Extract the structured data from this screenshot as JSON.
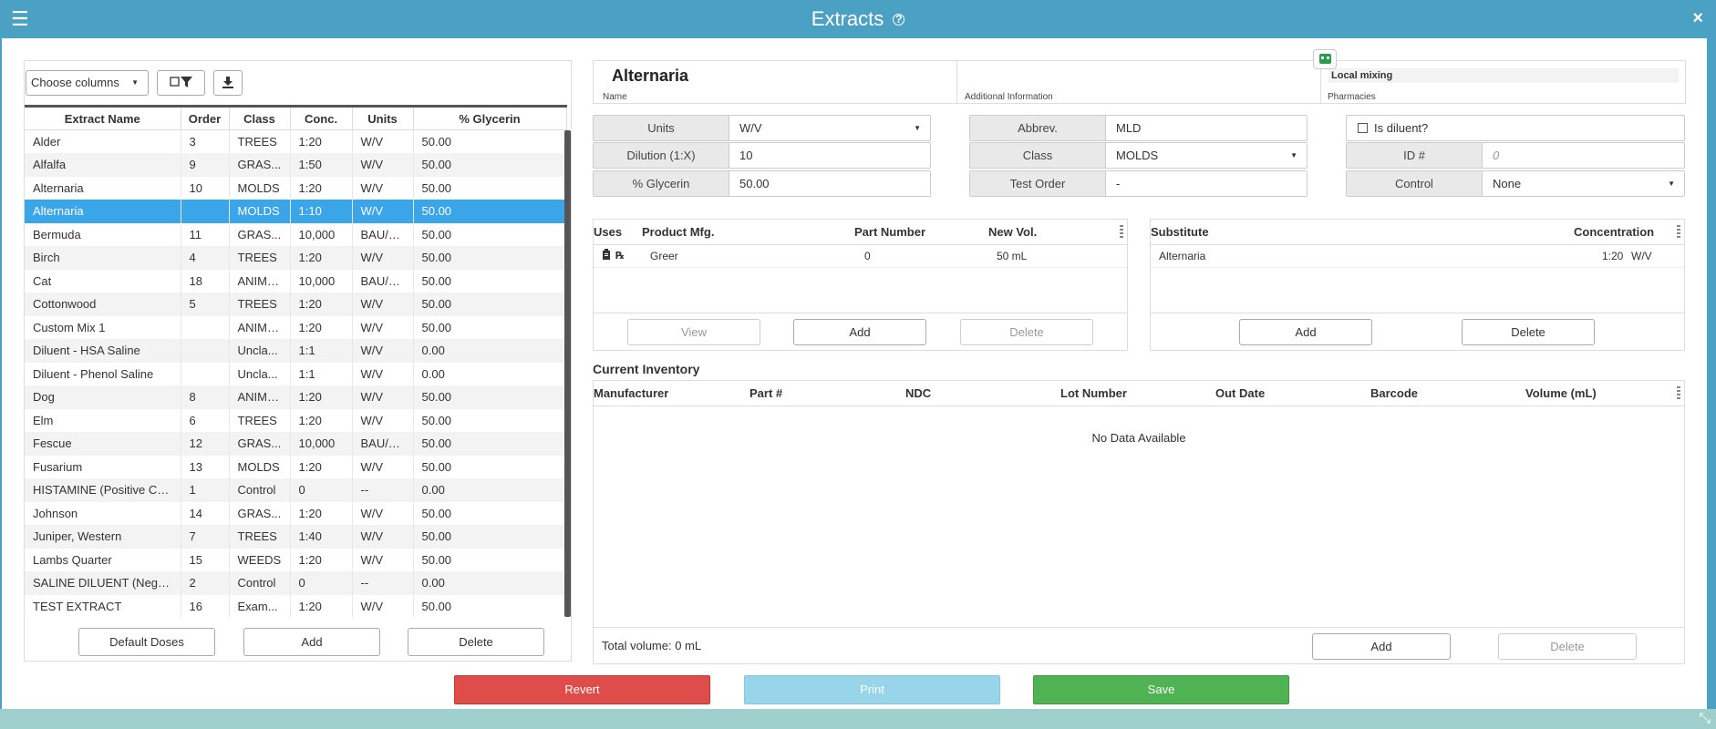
{
  "window": {
    "title": "Extracts",
    "help_icon": "?",
    "menu_icon": "☰",
    "close_icon": "×"
  },
  "list_toolbar": {
    "choose_columns": "Choose columns"
  },
  "extract_grid": {
    "columns": [
      "Extract Name",
      "Order",
      "Class",
      "Conc.",
      "Units",
      "% Glycerin"
    ],
    "rows": [
      [
        "Alder",
        "3",
        "TREES",
        "1:20",
        "W/V",
        "50.00"
      ],
      [
        "Alfalfa",
        "9",
        "GRAS...",
        "1:50",
        "W/V",
        "50.00"
      ],
      [
        "Alternaria",
        "10",
        "MOLDS",
        "1:20",
        "W/V",
        "50.00"
      ],
      [
        "Alternaria",
        "",
        "MOLDS",
        "1:10",
        "W/V",
        "50.00"
      ],
      [
        "Bermuda",
        "11",
        "GRAS...",
        "10,000",
        "BAU/mL",
        "50.00"
      ],
      [
        "Birch",
        "4",
        "TREES",
        "1:20",
        "W/V",
        "50.00"
      ],
      [
        "Cat",
        "18",
        "ANIMAL",
        "10,000",
        "BAU/mL",
        "50.00"
      ],
      [
        "Cottonwood",
        "5",
        "TREES",
        "1:20",
        "W/V",
        "50.00"
      ],
      [
        "Custom Mix 1",
        "",
        "ANIMAL",
        "1:20",
        "W/V",
        "50.00"
      ],
      [
        "Diluent - HSA Saline",
        "",
        "Uncla...",
        "1:1",
        "W/V",
        "0.00"
      ],
      [
        "Diluent - Phenol Saline",
        "",
        "Uncla...",
        "1:1",
        "W/V",
        "0.00"
      ],
      [
        "Dog",
        "8",
        "ANIMAL",
        "1:20",
        "W/V",
        "50.00"
      ],
      [
        "Elm",
        "6",
        "TREES",
        "1:20",
        "W/V",
        "50.00"
      ],
      [
        "Fescue",
        "12",
        "GRAS...",
        "10,000",
        "BAU/mL",
        "50.00"
      ],
      [
        "Fusarium",
        "13",
        "MOLDS",
        "1:20",
        "W/V",
        "50.00"
      ],
      [
        "HISTAMINE (Positive Co...",
        "1",
        "Control",
        "0",
        "--",
        "0.00"
      ],
      [
        "Johnson",
        "14",
        "GRAS...",
        "1:20",
        "W/V",
        "50.00"
      ],
      [
        "Juniper, Western",
        "7",
        "TREES",
        "1:40",
        "W/V",
        "50.00"
      ],
      [
        "Lambs Quarter",
        "15",
        "WEEDS",
        "1:20",
        "W/V",
        "50.00"
      ],
      [
        "SALINE DILUENT (Negat...",
        "2",
        "Control",
        "0",
        "--",
        "0.00"
      ],
      [
        "TEST EXTRACT",
        "16",
        "Exam...",
        "1:20",
        "W/V",
        "50.00"
      ]
    ]
  },
  "list_buttons": {
    "default_doses": "Default Doses",
    "add": "Add",
    "delete": "Delete"
  },
  "detail": {
    "name": {
      "value": "Alternaria",
      "label": "Name"
    },
    "additional_info": {
      "value": "",
      "label": "Additional Information"
    },
    "pharmacies": {
      "value": "Local mixing",
      "label": "Pharmacies"
    },
    "units": {
      "label": "Units",
      "value": "W/V"
    },
    "dilution": {
      "label": "Dilution (1:X)",
      "value": "10"
    },
    "glycerin": {
      "label": "% Glycerin",
      "value": "50.00"
    },
    "abbrev": {
      "label": "Abbrev.",
      "value": "MLD"
    },
    "class": {
      "label": "Class",
      "value": "MOLDS"
    },
    "test_order": {
      "label": "Test Order",
      "value": "-"
    },
    "is_diluent": {
      "label": "Is diluent?",
      "checked": false
    },
    "id_num": {
      "label": "ID #",
      "placeholder": "0"
    },
    "control": {
      "label": "Control",
      "value": "None"
    }
  },
  "products": {
    "columns": [
      "Uses",
      "Product Mfg.",
      "Part Number",
      "New Vol."
    ],
    "rows": [
      {
        "mfg": "Greer",
        "part": "0",
        "vol": "50 mL"
      }
    ],
    "buttons": {
      "view": "View",
      "add": "Add",
      "delete": "Delete"
    }
  },
  "substitutes": {
    "columns": [
      "Substitute",
      "Concentration"
    ],
    "rows": [
      {
        "name": "Alternaria",
        "conc": "1:20",
        "units": "W/V"
      }
    ],
    "buttons": {
      "add": "Add",
      "delete": "Delete"
    }
  },
  "inventory": {
    "title": "Current Inventory",
    "columns": [
      "Manufacturer",
      "Part #",
      "NDC",
      "Lot Number",
      "Out Date",
      "Barcode",
      "Volume (mL)"
    ],
    "empty": "No Data Available",
    "total": "Total volume: 0 mL",
    "buttons": {
      "add": "Add",
      "delete": "Delete"
    }
  },
  "actions": {
    "revert": "Revert",
    "print": "Print",
    "save": "Save"
  },
  "colors": {
    "titlebar": "#4ba1c3",
    "selected_row": "#3aa5e8",
    "revert": "#df4d4a",
    "print": "#98d5ea",
    "save": "#4fb253"
  }
}
